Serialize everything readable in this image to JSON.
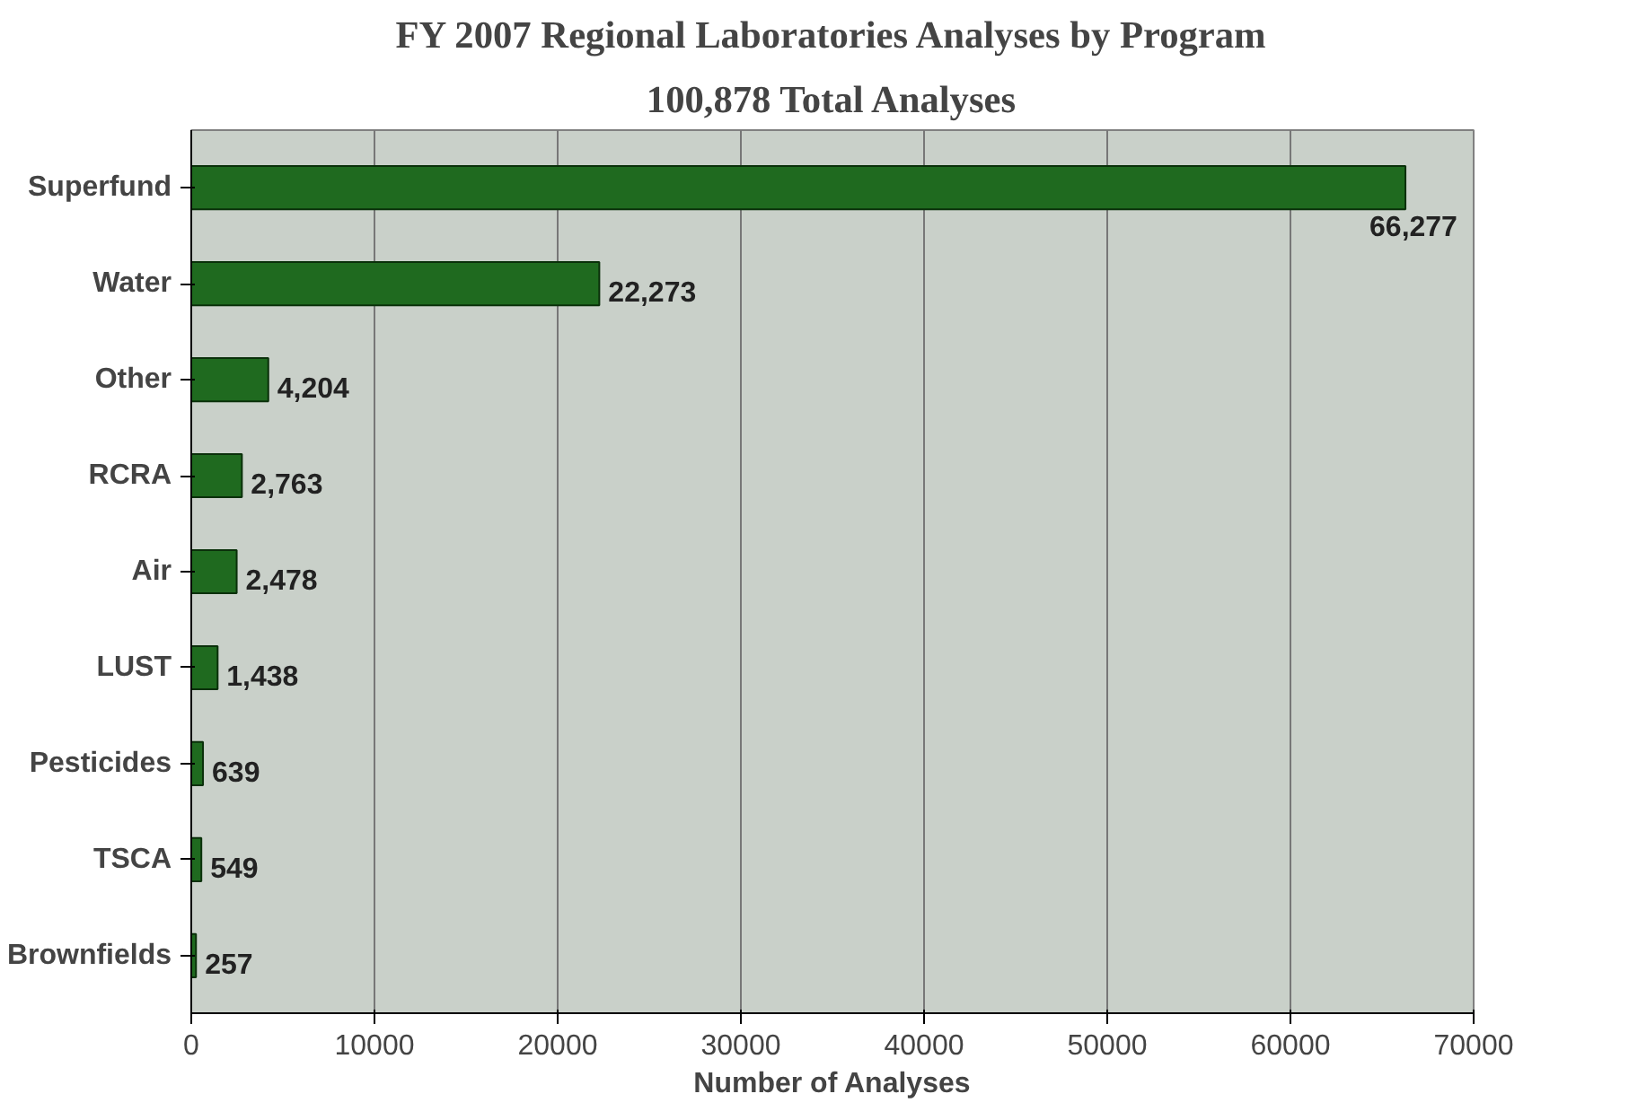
{
  "chart_data": {
    "type": "bar",
    "orientation": "horizontal",
    "title": "FY 2007 Regional Laboratories Analyses by Program",
    "subtitle": "100,878 Total Analyses",
    "xlabel": "Number of Analyses",
    "categories": [
      "Superfund",
      "Water",
      "Other",
      "RCRA",
      "Air",
      "LUST",
      "Pesticides",
      "TSCA",
      "Brownfields"
    ],
    "values": [
      66277,
      22273,
      4204,
      2763,
      2478,
      1438,
      639,
      549,
      257
    ],
    "value_labels": [
      "66,277",
      "22,273",
      "4,204",
      "2,763",
      "2,478",
      "1,438",
      "639",
      "549",
      "257"
    ],
    "color": "#1f6a1f",
    "xlim": [
      0,
      70000
    ],
    "xticks": [
      0,
      10000,
      20000,
      30000,
      40000,
      50000,
      60000,
      70000
    ],
    "grid": "x"
  }
}
